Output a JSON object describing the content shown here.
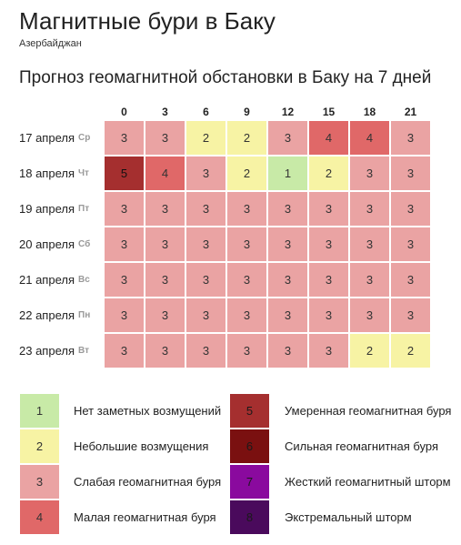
{
  "header": {
    "title": "Магнитные бури в Баку",
    "subtitle": "Азербайджан",
    "forecast_heading": "Прогноз геомагнитной обстановки в Баку на 7 дней"
  },
  "chart_data": {
    "type": "heatmap",
    "hours": [
      "0",
      "3",
      "6",
      "9",
      "12",
      "15",
      "18",
      "21"
    ],
    "days": [
      {
        "date": "17 апреля",
        "dow": "Ср",
        "values": [
          3,
          3,
          2,
          2,
          3,
          4,
          4,
          3
        ]
      },
      {
        "date": "18 апреля",
        "dow": "Чт",
        "values": [
          5,
          4,
          3,
          2,
          1,
          2,
          3,
          3
        ]
      },
      {
        "date": "19 апреля",
        "dow": "Пт",
        "values": [
          3,
          3,
          3,
          3,
          3,
          3,
          3,
          3
        ]
      },
      {
        "date": "20 апреля",
        "dow": "Сб",
        "values": [
          3,
          3,
          3,
          3,
          3,
          3,
          3,
          3
        ]
      },
      {
        "date": "21 апреля",
        "dow": "Вс",
        "values": [
          3,
          3,
          3,
          3,
          3,
          3,
          3,
          3
        ]
      },
      {
        "date": "22 апреля",
        "dow": "Пн",
        "values": [
          3,
          3,
          3,
          3,
          3,
          3,
          3,
          3
        ]
      },
      {
        "date": "23 апреля",
        "dow": "Вт",
        "values": [
          3,
          3,
          3,
          3,
          3,
          3,
          2,
          2
        ]
      }
    ],
    "legend": [
      {
        "level": "1",
        "label": "Нет заметных возмущений",
        "color": "#c8eaa7"
      },
      {
        "level": "2",
        "label": "Небольшие возмущения",
        "color": "#f7f3a4"
      },
      {
        "level": "3",
        "label": "Слабая геомагнитная буря",
        "color": "#eaa3a3"
      },
      {
        "level": "4",
        "label": "Малая геомагнитная буря",
        "color": "#e06868"
      },
      {
        "level": "5",
        "label": "Умеренная геомагнитная буря",
        "color": "#a52f2f"
      },
      {
        "level": "6",
        "label": "Сильная геомагнитная буря",
        "color": "#7a1010"
      },
      {
        "level": "7",
        "label": "Жесткий геомагнитный шторм",
        "color": "#8a0a9e"
      },
      {
        "level": "8",
        "label": "Экстремальный шторм",
        "color": "#4a0a5c"
      }
    ]
  }
}
